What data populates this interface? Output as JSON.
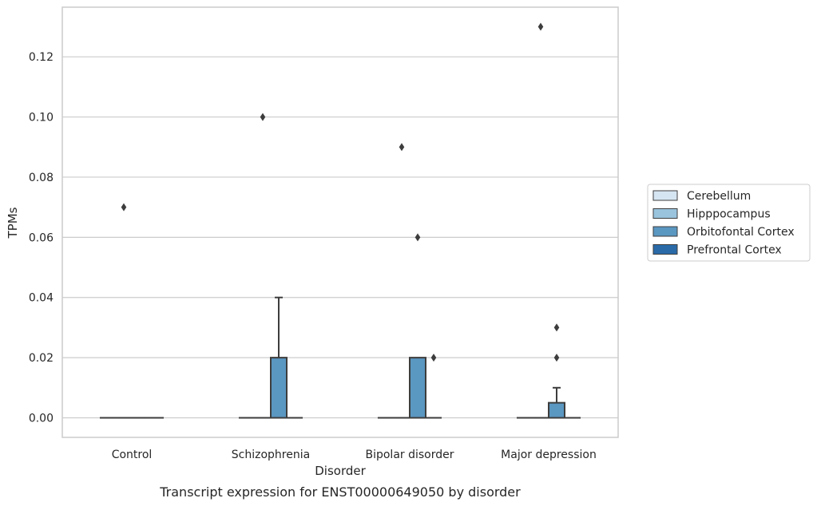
{
  "chart_data": {
    "type": "box",
    "caption": "Transcript expression for ENST00000649050 by disorder",
    "xlabel": "Disorder",
    "ylabel": "TPMs",
    "ylim": [
      -0.0065,
      0.1365
    ],
    "yticks": [
      "0.00",
      "0.02",
      "0.04",
      "0.06",
      "0.08",
      "0.10",
      "0.12"
    ],
    "ytick_values": [
      0,
      0.02,
      0.04,
      0.06,
      0.08,
      0.1,
      0.12
    ],
    "grid": true,
    "legend_position": "right",
    "categories": [
      "Control",
      "Schizophrenia",
      "Bipolar disorder",
      "Major depression"
    ],
    "series": [
      {
        "name": "Cerebellum",
        "color": "#d6e5f2",
        "boxes": [
          {
            "q1": 0,
            "median": 0,
            "q3": 0,
            "whisker_low": 0,
            "whisker_high": 0,
            "outliers": []
          },
          {
            "q1": 0,
            "median": 0,
            "q3": 0,
            "whisker_low": 0,
            "whisker_high": 0,
            "outliers": []
          },
          {
            "q1": 0,
            "median": 0,
            "q3": 0,
            "whisker_low": 0,
            "whisker_high": 0,
            "outliers": []
          },
          {
            "q1": 0,
            "median": 0,
            "q3": 0,
            "whisker_low": 0,
            "whisker_high": 0,
            "outliers": []
          }
        ]
      },
      {
        "name": "Hipppocampus",
        "color": "#9ac4de",
        "boxes": [
          {
            "q1": 0,
            "median": 0,
            "q3": 0,
            "whisker_low": 0,
            "whisker_high": 0,
            "outliers": [
              0.07
            ]
          },
          {
            "q1": 0,
            "median": 0,
            "q3": 0,
            "whisker_low": 0,
            "whisker_high": 0,
            "outliers": [
              0.1
            ]
          },
          {
            "q1": 0,
            "median": 0,
            "q3": 0,
            "whisker_low": 0,
            "whisker_high": 0,
            "outliers": [
              0.09
            ]
          },
          {
            "q1": 0,
            "median": 0,
            "q3": 0,
            "whisker_low": 0,
            "whisker_high": 0,
            "outliers": [
              0.13
            ]
          }
        ]
      },
      {
        "name": "Orbitofontal Cortex",
        "color": "#5a97c1",
        "boxes": [
          {
            "q1": 0,
            "median": 0,
            "q3": 0,
            "whisker_low": 0,
            "whisker_high": 0,
            "outliers": []
          },
          {
            "q1": 0,
            "median": 0,
            "q3": 0.02,
            "whisker_low": 0,
            "whisker_high": 0.04,
            "outliers": []
          },
          {
            "q1": 0,
            "median": 0,
            "q3": 0.02,
            "whisker_low": 0,
            "whisker_high": 0.02,
            "outliers": [
              0.06
            ]
          },
          {
            "q1": 0,
            "median": 0,
            "q3": 0.005,
            "whisker_low": 0,
            "whisker_high": 0.01,
            "outliers": [
              0.02,
              0.03
            ]
          }
        ]
      },
      {
        "name": "Prefrontal Cortex",
        "color": "#2a6aa7",
        "boxes": [
          {
            "q1": 0,
            "median": 0,
            "q3": 0,
            "whisker_low": 0,
            "whisker_high": 0,
            "outliers": []
          },
          {
            "q1": 0,
            "median": 0,
            "q3": 0,
            "whisker_low": 0,
            "whisker_high": 0,
            "outliers": []
          },
          {
            "q1": 0,
            "median": 0,
            "q3": 0,
            "whisker_low": 0,
            "whisker_high": 0,
            "outliers": [
              0.02
            ]
          },
          {
            "q1": 0,
            "median": 0,
            "q3": 0,
            "whisker_low": 0,
            "whisker_high": 0,
            "outliers": []
          }
        ]
      }
    ]
  }
}
